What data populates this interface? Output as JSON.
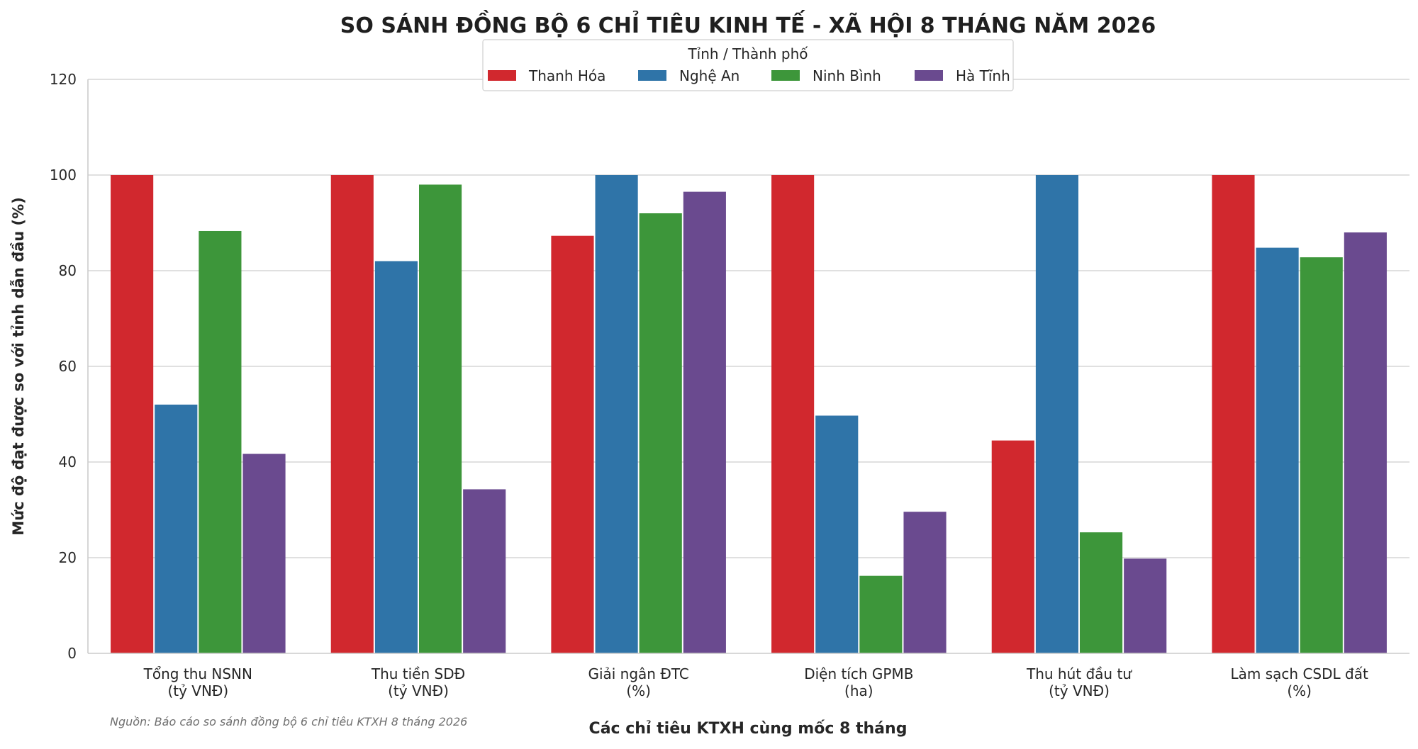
{
  "chart_data": {
    "type": "bar",
    "title": "SO SÁNH ĐỒNG BỘ 6 CHỈ TIÊU KINH TẾ - XÃ HỘI 8 THÁNG NĂM 2026",
    "xlabel": "Các chỉ tiêu KTXH cùng mốc 8 tháng",
    "ylabel": "Mức độ đạt được so với tỉnh dẫn đầu (%)",
    "ylim": [
      0,
      120
    ],
    "yticks": [
      "0",
      "20",
      "40",
      "60",
      "80",
      "100",
      "120"
    ],
    "grid": true,
    "legend": {
      "title": "Tỉnh / Thành phố",
      "placement": "top-center"
    },
    "source_note": "Nguồn: Báo cáo so sánh đồng bộ 6 chỉ tiêu KTXH 8 tháng 2026",
    "categories": [
      [
        "Tổng thu NSNN",
        "(tỷ VNĐ)"
      ],
      [
        "Thu tiền SDĐ",
        "(tỷ VNĐ)"
      ],
      [
        "Giải ngân ĐTC",
        "(%)"
      ],
      [
        "Diện tích GPMB",
        "(ha)"
      ],
      [
        "Thu hút đầu tư",
        "(tỷ VNĐ)"
      ],
      [
        "Làm sạch CSDL đất",
        "(%)"
      ]
    ],
    "series": [
      {
        "name": "Thanh Hóa",
        "color": "#d1282e",
        "values": [
          100,
          100,
          87.3,
          100,
          44.5,
          100
        ]
      },
      {
        "name": "Nghệ An",
        "color": "#2f74a8",
        "values": [
          52.0,
          82.0,
          100,
          49.7,
          100,
          84.8
        ]
      },
      {
        "name": "Ninh Bình",
        "color": "#3d963a",
        "values": [
          88.3,
          98.0,
          92.0,
          16.2,
          25.3,
          82.8
        ]
      },
      {
        "name": "Hà Tĩnh",
        "color": "#6a4a8f",
        "values": [
          41.7,
          34.3,
          96.5,
          29.6,
          19.8,
          88.0
        ]
      }
    ]
  }
}
